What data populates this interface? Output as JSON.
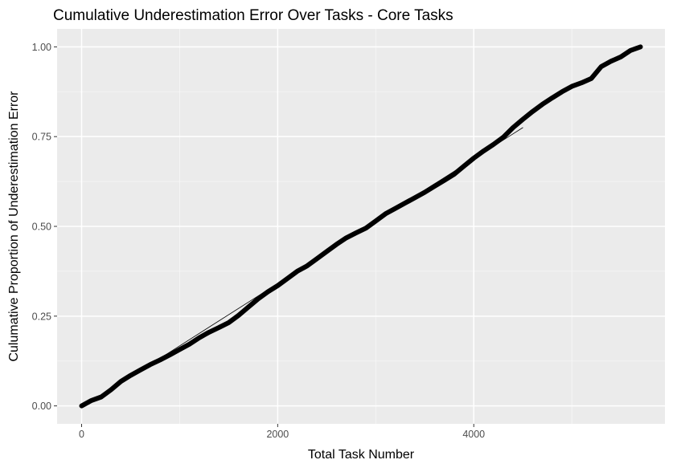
{
  "chart_data": {
    "type": "line",
    "title": "Cumulative Underestimation Error Over Tasks - Core Tasks",
    "xlabel": "Total Task Number",
    "ylabel": "Culumative Proportion of Underestimation Error",
    "xlim": [
      -250,
      5950
    ],
    "ylim": [
      -0.05,
      1.05
    ],
    "x_ticks": [
      0,
      2000,
      4000
    ],
    "x_tick_labels": [
      "0",
      "2000",
      "4000"
    ],
    "y_ticks": [
      0.0,
      0.25,
      0.5,
      0.75,
      1.0
    ],
    "y_tick_labels": [
      "0.00",
      "0.25",
      "0.50",
      "0.75",
      "1.00"
    ],
    "grid": true,
    "background": "#ebebeb",
    "series": [
      {
        "style": "thick",
        "color": "#000000",
        "x": [
          0,
          100,
          200,
          300,
          400,
          500,
          600,
          700,
          800,
          900,
          1000,
          1100,
          1200,
          1300,
          1400,
          1500,
          1600,
          1700,
          1800,
          1900,
          2000,
          2100,
          2200,
          2300,
          2400,
          2500,
          2600,
          2700,
          2800,
          2900,
          3000,
          3100,
          3200,
          3300,
          3400,
          3500,
          3600,
          3700,
          3800,
          3900,
          4000,
          4100,
          4200,
          4300,
          4400,
          4500,
          4600,
          4700,
          4800,
          4900,
          5000,
          5100,
          5200,
          5300,
          5400,
          5500,
          5600,
          5700
        ],
        "y": [
          0.0,
          0.015,
          0.025,
          0.045,
          0.068,
          0.085,
          0.1,
          0.115,
          0.128,
          0.142,
          0.157,
          0.172,
          0.19,
          0.205,
          0.218,
          0.232,
          0.252,
          0.275,
          0.298,
          0.318,
          0.335,
          0.355,
          0.375,
          0.39,
          0.41,
          0.43,
          0.45,
          0.468,
          0.482,
          0.495,
          0.515,
          0.535,
          0.55,
          0.565,
          0.58,
          0.595,
          0.612,
          0.628,
          0.645,
          0.668,
          0.69,
          0.71,
          0.728,
          0.748,
          0.775,
          0.798,
          0.82,
          0.84,
          0.858,
          0.875,
          0.89,
          0.9,
          0.912,
          0.945,
          0.96,
          0.972,
          0.99,
          1.0
        ]
      },
      {
        "style": "thin",
        "color": "#000000",
        "x": [
          700,
          4500
        ],
        "y": [
          0.115,
          0.775
        ]
      }
    ]
  }
}
